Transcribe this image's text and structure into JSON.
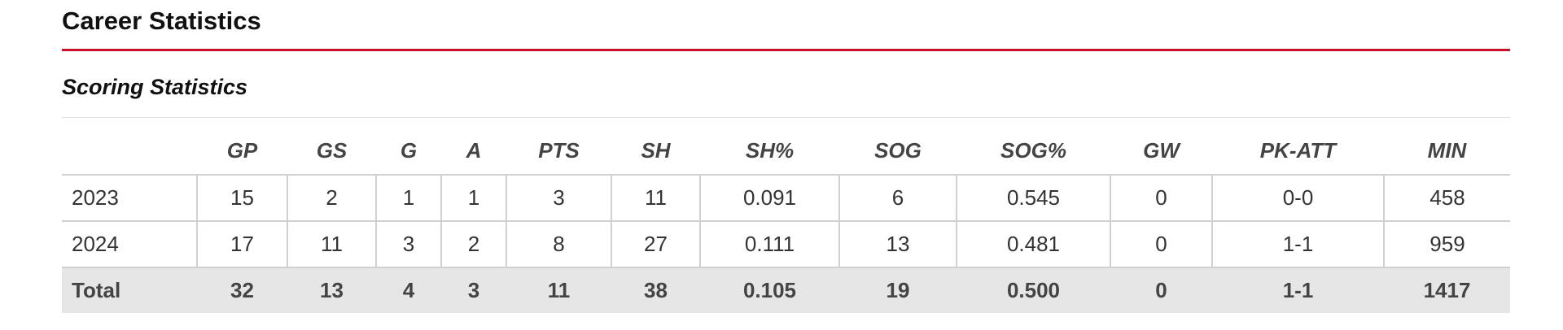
{
  "header": {
    "title": "Career Statistics"
  },
  "section": {
    "title": "Scoring Statistics"
  },
  "table": {
    "columns": [
      "GP",
      "GS",
      "G",
      "A",
      "PTS",
      "SH",
      "SH%",
      "SOG",
      "SOG%",
      "GW",
      "PK-ATT",
      "MIN"
    ],
    "rows": [
      {
        "label": "2023",
        "cells": [
          "15",
          "2",
          "1",
          "1",
          "3",
          "11",
          "0.091",
          "6",
          "0.545",
          "0",
          "0-0",
          "458"
        ]
      },
      {
        "label": "2024",
        "cells": [
          "17",
          "11",
          "3",
          "2",
          "8",
          "27",
          "0.111",
          "13",
          "0.481",
          "0",
          "1-1",
          "959"
        ]
      }
    ],
    "total": {
      "label": "Total",
      "cells": [
        "32",
        "13",
        "4",
        "3",
        "11",
        "38",
        "0.105",
        "19",
        "0.500",
        "0",
        "1-1",
        "1417"
      ]
    }
  }
}
